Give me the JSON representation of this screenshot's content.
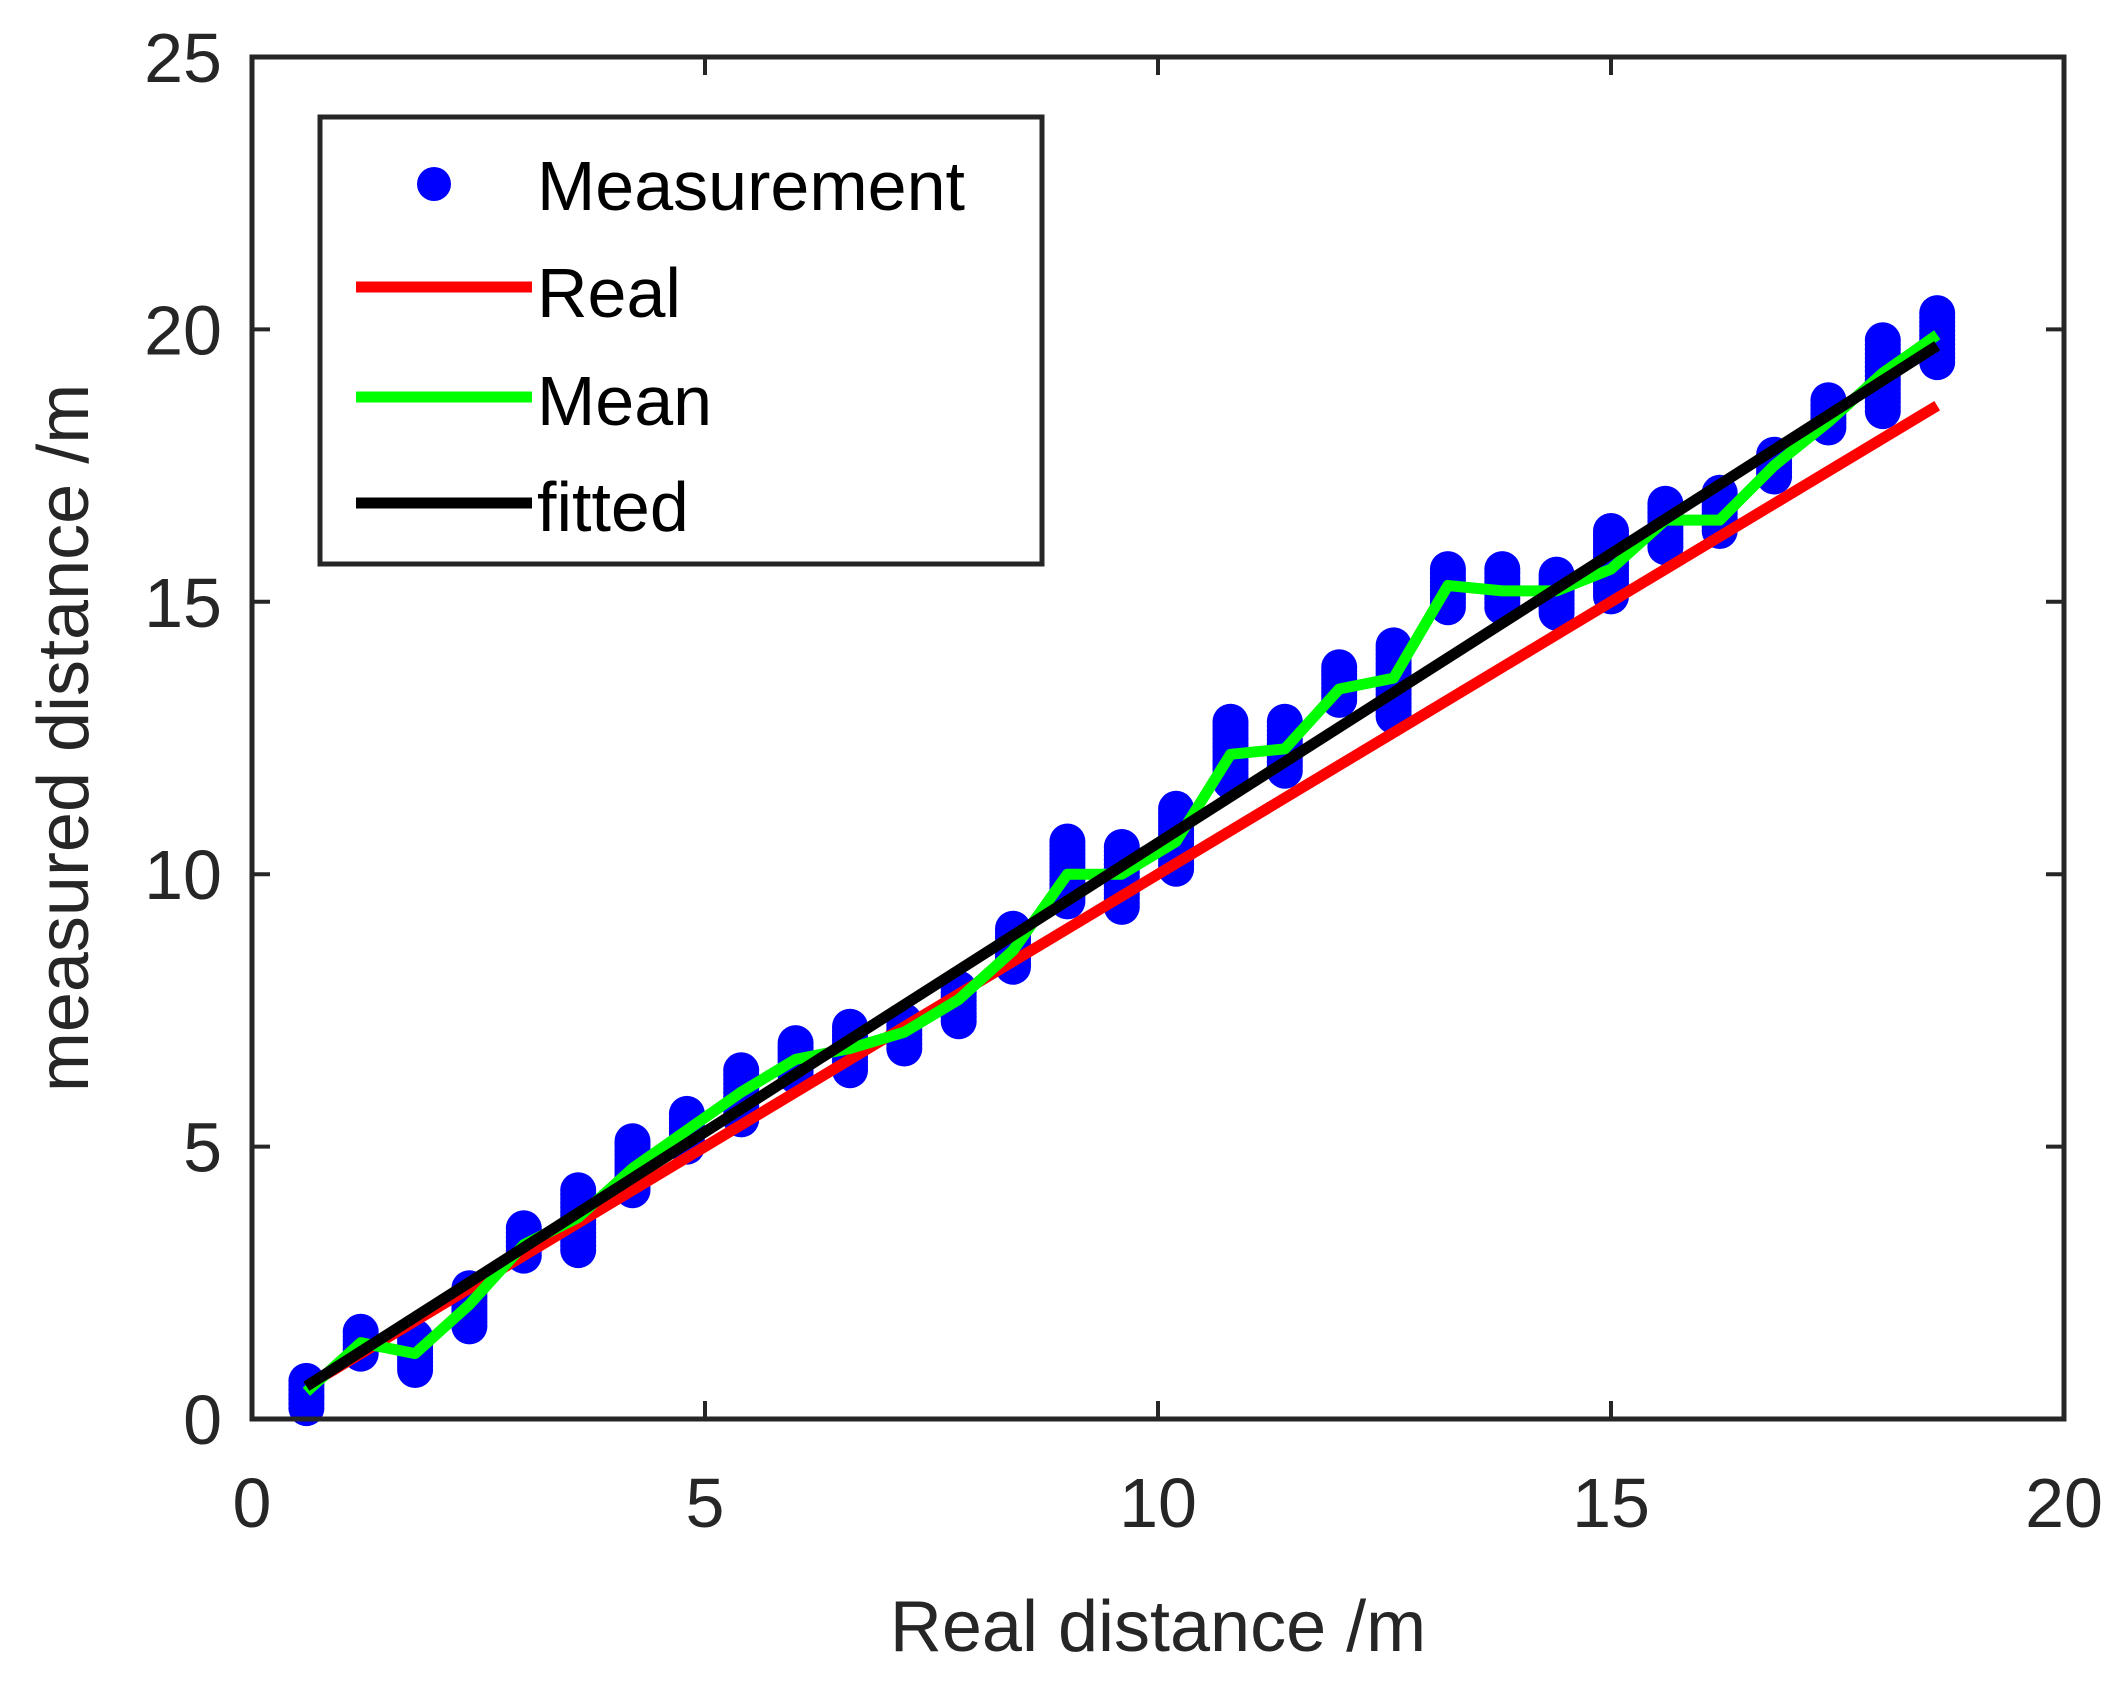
{
  "chart_data": {
    "type": "scatter",
    "title": "",
    "xlabel": "Real distance /m",
    "ylabel": "measured distance /m",
    "xlim": [
      0,
      20
    ],
    "ylim": [
      0,
      25
    ],
    "xticks": [
      0,
      5,
      10,
      15,
      20
    ],
    "yticks": [
      0,
      5,
      10,
      15,
      20,
      25
    ],
    "grid": false,
    "legend_position": "top-left",
    "legend": [
      "Measurement",
      "Real",
      "Mean",
      "fitted"
    ],
    "colors": {
      "measurement": "#0000ff",
      "real": "#ff0000",
      "mean": "#00ff00",
      "fitted": "#000000",
      "axis": "#262626"
    },
    "measurement_groups": [
      {
        "x": 0.6,
        "ymin": 0.2,
        "ymax": 0.7
      },
      {
        "x": 1.2,
        "ymin": 1.2,
        "ymax": 1.6
      },
      {
        "x": 1.8,
        "ymin": 0.9,
        "ymax": 1.5
      },
      {
        "x": 2.4,
        "ymin": 1.7,
        "ymax": 2.4
      },
      {
        "x": 3.0,
        "ymin": 3.0,
        "ymax": 3.5
      },
      {
        "x": 3.6,
        "ymin": 3.1,
        "ymax": 4.2
      },
      {
        "x": 4.2,
        "ymin": 4.2,
        "ymax": 5.1
      },
      {
        "x": 4.8,
        "ymin": 5.0,
        "ymax": 5.6
      },
      {
        "x": 5.4,
        "ymin": 5.5,
        "ymax": 6.4
      },
      {
        "x": 6.0,
        "ymin": 6.3,
        "ymax": 6.9
      },
      {
        "x": 6.6,
        "ymin": 6.4,
        "ymax": 7.2
      },
      {
        "x": 7.2,
        "ymin": 6.8,
        "ymax": 7.3
      },
      {
        "x": 7.8,
        "ymin": 7.3,
        "ymax": 7.9
      },
      {
        "x": 8.4,
        "ymin": 8.3,
        "ymax": 9.0
      },
      {
        "x": 9.0,
        "ymin": 9.5,
        "ymax": 10.6
      },
      {
        "x": 9.6,
        "ymin": 9.4,
        "ymax": 10.5
      },
      {
        "x": 10.2,
        "ymin": 10.1,
        "ymax": 11.2
      },
      {
        "x": 10.8,
        "ymin": 11.7,
        "ymax": 12.8
      },
      {
        "x": 11.4,
        "ymin": 11.9,
        "ymax": 12.8
      },
      {
        "x": 12.0,
        "ymin": 13.2,
        "ymax": 13.8
      },
      {
        "x": 12.6,
        "ymin": 12.9,
        "ymax": 14.2
      },
      {
        "x": 13.2,
        "ymin": 14.9,
        "ymax": 15.6
      },
      {
        "x": 13.8,
        "ymin": 14.9,
        "ymax": 15.6
      },
      {
        "x": 14.4,
        "ymin": 14.8,
        "ymax": 15.5
      },
      {
        "x": 15.0,
        "ymin": 15.1,
        "ymax": 16.3
      },
      {
        "x": 15.6,
        "ymin": 16.0,
        "ymax": 16.8
      },
      {
        "x": 16.2,
        "ymin": 16.3,
        "ymax": 17.0
      },
      {
        "x": 16.8,
        "ymin": 17.3,
        "ymax": 17.7
      },
      {
        "x": 17.4,
        "ymin": 18.2,
        "ymax": 18.7
      },
      {
        "x": 18.0,
        "ymin": 18.5,
        "ymax": 19.8
      },
      {
        "x": 18.6,
        "ymin": 19.4,
        "ymax": 20.3
      }
    ],
    "series": [
      {
        "name": "Real",
        "x": [
          0.6,
          18.6
        ],
        "y": [
          0.6,
          18.6
        ]
      },
      {
        "name": "Mean",
        "x": [
          0.6,
          1.2,
          1.8,
          2.4,
          3.0,
          3.6,
          4.2,
          4.8,
          5.4,
          6.0,
          6.6,
          7.2,
          7.8,
          8.4,
          9.0,
          9.6,
          10.2,
          10.8,
          11.4,
          12.0,
          12.6,
          13.2,
          13.8,
          14.4,
          15.0,
          15.6,
          16.2,
          16.8,
          17.4,
          18.0,
          18.6
        ],
        "y": [
          0.5,
          1.4,
          1.2,
          2.1,
          3.2,
          3.7,
          4.6,
          5.3,
          6.0,
          6.6,
          6.8,
          7.1,
          7.7,
          8.6,
          10.0,
          10.0,
          10.6,
          12.2,
          12.3,
          13.4,
          13.6,
          15.3,
          15.2,
          15.2,
          15.6,
          16.5,
          16.5,
          17.5,
          18.3,
          19.2,
          19.9
        ]
      },
      {
        "name": "fitted",
        "x": [
          0.6,
          18.6
        ],
        "y": [
          0.6,
          19.7
        ]
      }
    ]
  }
}
